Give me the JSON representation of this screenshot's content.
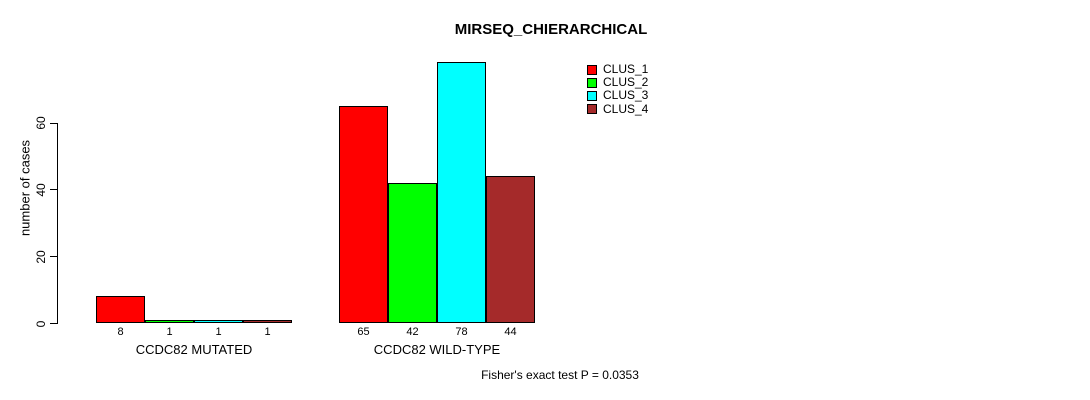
{
  "chart_data": {
    "type": "bar",
    "title": "MIRSEQ_CHIERARCHICAL",
    "ylabel": "number of cases",
    "xlabel": "",
    "yticks": [
      0,
      20,
      40,
      60
    ],
    "ylim": [
      0,
      78
    ],
    "grid": false,
    "legend_position": "top-right",
    "categories": [
      "CCDC82 MUTATED",
      "CCDC82 WILD-TYPE"
    ],
    "series": [
      {
        "name": "CLUS_1",
        "color": "#FF0000",
        "values": [
          8,
          65
        ]
      },
      {
        "name": "CLUS_2",
        "color": "#00FF00",
        "values": [
          1,
          42
        ]
      },
      {
        "name": "CLUS_3",
        "color": "#00FFFF",
        "values": [
          1,
          78
        ]
      },
      {
        "name": "CLUS_4",
        "color": "#A52A2A",
        "values": [
          1,
          44
        ]
      }
    ],
    "bar_value_labels": [
      [
        8,
        1,
        1,
        1
      ],
      [
        65,
        42,
        78,
        44
      ]
    ],
    "annotation": "Fisher's exact test P = 0.0353"
  }
}
